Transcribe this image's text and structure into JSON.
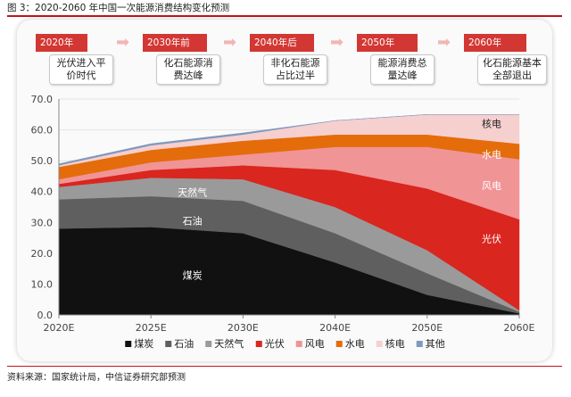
{
  "figure_title": "图 3：2020-2060 年中国一次能源消费结构变化预测",
  "source": "资料来源：国家统计局，中信证券研究部预测",
  "timeline": [
    {
      "year": "2020年",
      "note": "光伏进入平价时代"
    },
    {
      "year": "2030年前",
      "note": "化石能源消费达峰"
    },
    {
      "year": "2040年后",
      "note": "非化石能源占比过半"
    },
    {
      "year": "2050年",
      "note": "能源消费总量达峰"
    },
    {
      "year": "2060年",
      "note": "化石能源基本全部退出"
    }
  ],
  "timeline_arrow": "➡",
  "colors": {
    "accent": "#c0141b",
    "timeline": "#d23733",
    "coal": "#111111",
    "oil": "#5f5f5f",
    "gas": "#9a9a9a",
    "pv": "#d9261f",
    "wind": "#f09496",
    "hydro": "#e46c0a",
    "nuclear": "#f6cfcf",
    "other": "#7f98bd"
  },
  "chart_data": {
    "type": "area",
    "stacked": true,
    "title": "",
    "xlabel": "",
    "ylabel": "",
    "x": [
      "2020E",
      "2025E",
      "2030E",
      "2040E",
      "2050E",
      "2060E"
    ],
    "ylim": [
      0,
      70
    ],
    "yticks": [
      "0.0",
      "10.0",
      "20.0",
      "30.0",
      "40.0",
      "50.0",
      "60.0",
      "70.0"
    ],
    "series": [
      {
        "name": "煤炭",
        "color_key": "coal",
        "values": [
          28.0,
          28.5,
          26.5,
          17.0,
          6.5,
          0.5
        ]
      },
      {
        "name": "石油",
        "color_key": "oil",
        "values": [
          9.5,
          10.0,
          10.5,
          9.5,
          7.0,
          0.5
        ]
      },
      {
        "name": "天然气",
        "color_key": "gas",
        "values": [
          4.0,
          6.0,
          7.0,
          8.5,
          7.5,
          0.5
        ]
      },
      {
        "name": "光伏",
        "color_key": "pv",
        "values": [
          1.0,
          2.5,
          4.5,
          12.0,
          20.0,
          29.5
        ]
      },
      {
        "name": "风电",
        "color_key": "wind",
        "values": [
          1.5,
          2.5,
          3.5,
          7.5,
          13.5,
          19.5
        ]
      },
      {
        "name": "水电",
        "color_key": "hydro",
        "values": [
          4.0,
          4.0,
          4.5,
          4.0,
          4.0,
          5.0
        ]
      },
      {
        "name": "核电",
        "color_key": "nuclear",
        "values": [
          0.5,
          1.5,
          2.0,
          4.5,
          6.5,
          9.5
        ]
      },
      {
        "name": "其他",
        "color_key": "other",
        "values": [
          0.5,
          0.5,
          0.5,
          0.0,
          0.0,
          0.0
        ]
      }
    ],
    "annotations": [
      {
        "text": "核电",
        "x": "2060E",
        "y": 62.0,
        "dx_frac": -0.3,
        "color": "#222222"
      },
      {
        "text": "水电",
        "x": "2060E",
        "y": 52.0,
        "dx_frac": -0.3,
        "color": "#ffffff"
      },
      {
        "text": "风电",
        "x": "2060E",
        "y": 42.0,
        "dx_frac": -0.3,
        "color": "#ffffff"
      },
      {
        "text": "光伏",
        "x": "2060E",
        "y": 24.8,
        "dx_frac": -0.3,
        "color": "#ffffff"
      },
      {
        "text": "天然气",
        "x": "2025E",
        "y": 39.8,
        "dx_frac": 0.45,
        "color": "#ffffff"
      },
      {
        "text": "石油",
        "x": "2025E",
        "y": 30.5,
        "dx_frac": 0.45,
        "color": "#ffffff"
      },
      {
        "text": "煤炭",
        "x": "2025E",
        "y": 12.8,
        "dx_frac": 0.45,
        "color": "#ffffff"
      }
    ]
  }
}
